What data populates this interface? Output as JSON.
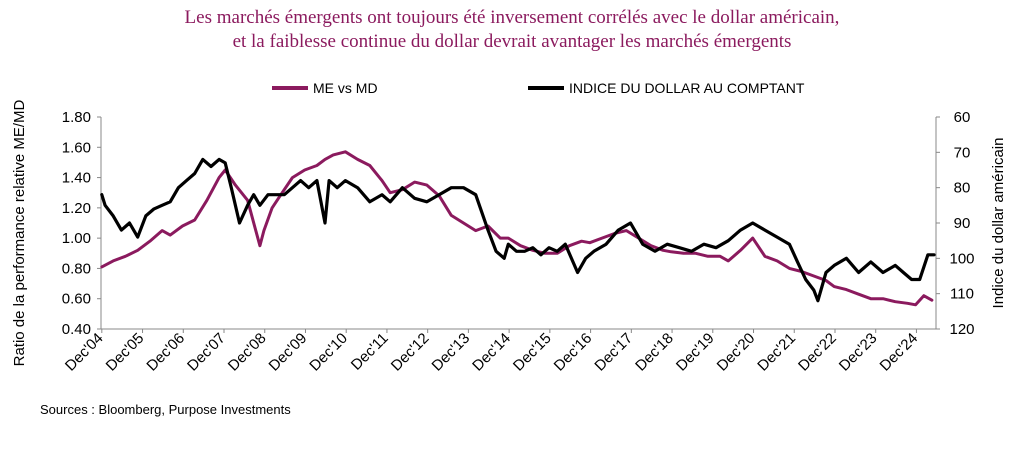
{
  "title": {
    "line1": "Les marchés émergents ont toujours été inversement corrélés avec le dollar américain,",
    "line2": "et la faiblesse continue du dollar devrait avantager les marchés émergents"
  },
  "source": "Sources : Bloomberg, Purpose Investments",
  "chart_data": {
    "type": "line",
    "title": "Les marchés émergents ont toujours été inversement corrélés avec le dollar américain, et la faiblesse continue du dollar devrait avantager les marchés émergents",
    "ylabel_left": "Ratio de la performance relative ME/MD",
    "ylabel_right": "Indice du dollar américain",
    "ylim_left": [
      0.4,
      1.8
    ],
    "ylim_right": [
      120,
      60
    ],
    "left_ticks": [
      "0.40",
      "0.60",
      "0.80",
      "1.00",
      "1.20",
      "1.40",
      "1.60",
      "1.80"
    ],
    "right_ticks": [
      "60",
      "70",
      "80",
      "90",
      "100",
      "110",
      "120"
    ],
    "x_ticks": [
      "Dec'04",
      "Dec'05",
      "Dec'06",
      "Dec'07",
      "Dec'08",
      "Dec'09",
      "Dec'10",
      "Dec'11",
      "Dec'12",
      "Dec'13",
      "Dec'14",
      "Dec'15",
      "Dec'16",
      "Dec'17",
      "Dec'18",
      "Dec'19",
      "Dec'20",
      "Dec'21",
      "Dec'22",
      "Dec'23",
      "Dec'24"
    ],
    "x_range": [
      2004.9,
      2025.4
    ],
    "legend_position": "top",
    "series": [
      {
        "name": "ME vs MD",
        "axis": "left",
        "color": "#8b1a5e",
        "x": [
          2004.92,
          2005.2,
          2005.5,
          2005.8,
          2006.1,
          2006.4,
          2006.6,
          2006.9,
          2007.2,
          2007.5,
          2007.8,
          2007.95,
          2008.2,
          2008.5,
          2008.7,
          2008.8,
          2008.9,
          2009.1,
          2009.3,
          2009.6,
          2009.9,
          2010.2,
          2010.4,
          2010.6,
          2010.9,
          2011.2,
          2011.5,
          2011.8,
          2012.0,
          2012.3,
          2012.6,
          2012.9,
          2013.2,
          2013.5,
          2013.8,
          2014.1,
          2014.4,
          2014.7,
          2014.9,
          2015.2,
          2015.5,
          2015.8,
          2016.1,
          2016.4,
          2016.7,
          2016.9,
          2017.2,
          2017.5,
          2017.8,
          2018.1,
          2018.4,
          2018.7,
          2018.9,
          2019.2,
          2019.5,
          2019.8,
          2020.1,
          2020.3,
          2020.6,
          2020.9,
          2021.2,
          2021.5,
          2021.8,
          2022.1,
          2022.4,
          2022.7,
          2022.9,
          2023.2,
          2023.5,
          2023.8,
          2024.1,
          2024.4,
          2024.7,
          2024.9,
          2025.1,
          2025.3
        ],
        "values": [
          0.81,
          0.85,
          0.88,
          0.92,
          0.98,
          1.05,
          1.02,
          1.08,
          1.12,
          1.25,
          1.4,
          1.45,
          1.35,
          1.25,
          1.05,
          0.95,
          1.05,
          1.2,
          1.28,
          1.4,
          1.45,
          1.48,
          1.52,
          1.55,
          1.57,
          1.52,
          1.48,
          1.38,
          1.3,
          1.32,
          1.37,
          1.35,
          1.28,
          1.15,
          1.1,
          1.05,
          1.08,
          1.0,
          1.0,
          0.95,
          0.92,
          0.9,
          0.9,
          0.95,
          0.98,
          0.97,
          1.0,
          1.03,
          1.05,
          1.0,
          0.95,
          0.92,
          0.91,
          0.9,
          0.9,
          0.88,
          0.88,
          0.85,
          0.92,
          1.0,
          0.88,
          0.85,
          0.8,
          0.78,
          0.75,
          0.72,
          0.68,
          0.66,
          0.63,
          0.6,
          0.6,
          0.58,
          0.57,
          0.56,
          0.62,
          0.59
        ]
      },
      {
        "name": "INDICE DU DOLLAR AU COMPTANT",
        "axis": "right",
        "color": "#000000",
        "x": [
          2004.92,
          2005.0,
          2005.2,
          2005.4,
          2005.6,
          2005.8,
          2006.0,
          2006.2,
          2006.4,
          2006.6,
          2006.8,
          2007.0,
          2007.2,
          2007.4,
          2007.6,
          2007.8,
          2007.95,
          2008.1,
          2008.3,
          2008.5,
          2008.65,
          2008.8,
          2009.0,
          2009.2,
          2009.4,
          2009.6,
          2009.8,
          2010.0,
          2010.2,
          2010.4,
          2010.5,
          2010.7,
          2010.9,
          2011.2,
          2011.5,
          2011.8,
          2012.0,
          2012.3,
          2012.6,
          2012.9,
          2013.2,
          2013.5,
          2013.8,
          2014.1,
          2014.4,
          2014.6,
          2014.8,
          2014.9,
          2015.1,
          2015.3,
          2015.5,
          2015.7,
          2015.9,
          2016.1,
          2016.3,
          2016.6,
          2016.8,
          2017.0,
          2017.3,
          2017.6,
          2017.9,
          2018.2,
          2018.5,
          2018.8,
          2019.1,
          2019.4,
          2019.7,
          2020.0,
          2020.3,
          2020.6,
          2020.9,
          2021.2,
          2021.5,
          2021.8,
          2022.0,
          2022.2,
          2022.4,
          2022.5,
          2022.7,
          2022.9,
          2023.2,
          2023.5,
          2023.8,
          2024.1,
          2024.4,
          2024.6,
          2024.8,
          2025.0,
          2025.2,
          2025.35
        ],
        "values": [
          82,
          85,
          88,
          92,
          90,
          94,
          88,
          86,
          85,
          84,
          80,
          78,
          76,
          72,
          74,
          72,
          73,
          80,
          90,
          85,
          82,
          85,
          82,
          82,
          82,
          80,
          78,
          80,
          78,
          90,
          78,
          80,
          78,
          80,
          84,
          82,
          84,
          80,
          83,
          84,
          82,
          80,
          80,
          82,
          92,
          98,
          100,
          96,
          98,
          98,
          97,
          99,
          97,
          98,
          96,
          104,
          100,
          98,
          96,
          92,
          90,
          96,
          98,
          96,
          97,
          98,
          96,
          97,
          95,
          92,
          90,
          92,
          94,
          96,
          101,
          106,
          109,
          112,
          104,
          102,
          100,
          104,
          101,
          104,
          102,
          104,
          106,
          106,
          99,
          99
        ]
      }
    ]
  }
}
